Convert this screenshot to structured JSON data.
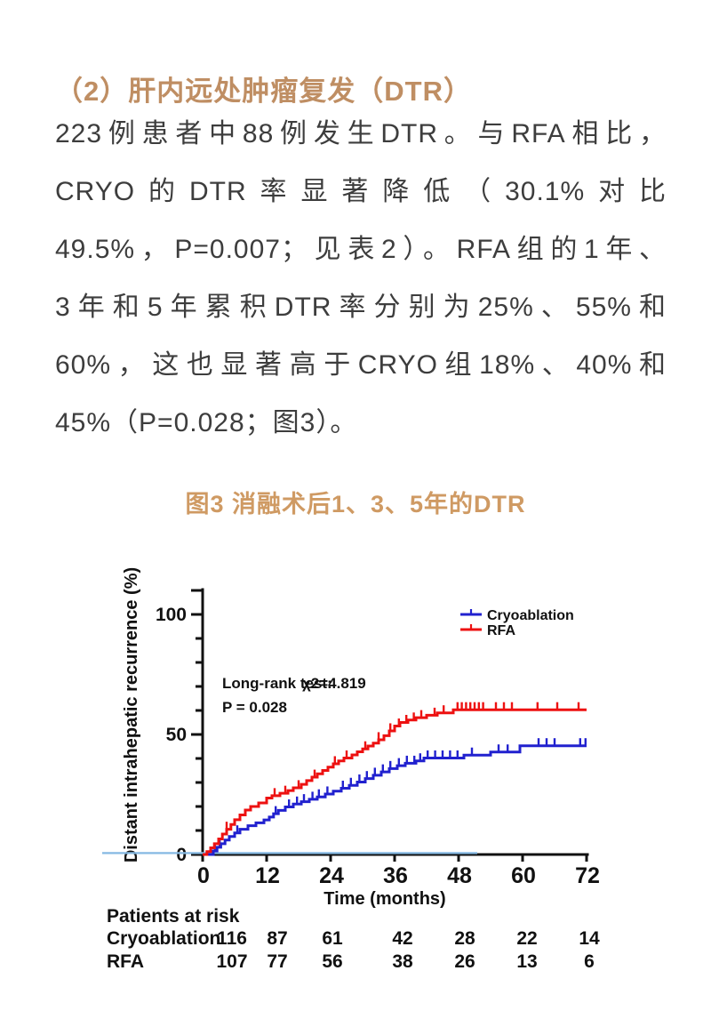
{
  "page": {
    "background": "#ffffff"
  },
  "heading": {
    "text": "（2）肝内远处肿瘤复发（DTR）",
    "color": "#bf8e63"
  },
  "paragraph": {
    "color": "#3d3d3d",
    "lines": [
      "223例患者中88例发生DTR。与RFA相比，",
      "CRYO的DTR率显著降低（30.1%对比",
      "49.5%，P=0.007；见表2）。RFA组的1年、",
      "3年和5年累积DTR率分别为25%、55%和",
      "60%，这也显著高于CRYO组18%、40%和",
      "45%（P=0.028；图3）。"
    ]
  },
  "figure_caption": {
    "text": "图3 消融术后1、3、5年的DTR",
    "color": "#cf9a63"
  },
  "chart_data": {
    "type": "line",
    "subtype": "kaplan-meier-step",
    "title": "",
    "ylabel": "Distant intrahepatic recurrence (%)",
    "xlabel": "Time (months)",
    "xlim": [
      0,
      72
    ],
    "ylim": [
      0,
      110
    ],
    "xticks": [
      0,
      12,
      24,
      36,
      48,
      60,
      72
    ],
    "yticks_major": [
      0,
      50,
      100
    ],
    "ytick_minor_step": 10,
    "grid": false,
    "axis_color": "#111111",
    "baseline_highlight_color": "#85b9e3",
    "legend_position": "top-right",
    "legend_order": [
      "Cryoablation",
      "RFA"
    ],
    "annotation": {
      "test_label": "Long-rank test:",
      "chi_value": "χ2=4.819",
      "p_value": "P = 0.028"
    },
    "series": [
      {
        "name": "Cryoablation",
        "color": "#2121cf",
        "steps": [
          [
            0,
            0
          ],
          [
            2,
            1.5
          ],
          [
            2.7,
            3
          ],
          [
            3.4,
            4.5
          ],
          [
            4.2,
            6
          ],
          [
            5,
            7.5
          ],
          [
            6,
            9
          ],
          [
            7,
            10.5
          ],
          [
            8.5,
            12
          ],
          [
            10,
            13.2
          ],
          [
            11.5,
            14.4
          ],
          [
            12.5,
            15.6
          ],
          [
            13.3,
            17
          ],
          [
            14.2,
            18.4
          ],
          [
            15.5,
            19.8
          ],
          [
            17,
            21
          ],
          [
            18.5,
            22
          ],
          [
            20,
            23
          ],
          [
            21.5,
            24
          ],
          [
            23,
            25.2
          ],
          [
            24.5,
            26.4
          ],
          [
            26,
            27.6
          ],
          [
            27.5,
            28.8
          ],
          [
            29,
            30.2
          ],
          [
            30.5,
            31.6
          ],
          [
            32,
            33
          ],
          [
            33.5,
            34.4
          ],
          [
            35,
            35.8
          ],
          [
            36.5,
            37
          ],
          [
            38,
            38
          ],
          [
            40,
            39
          ],
          [
            41.5,
            40.2
          ],
          [
            49,
            41.4
          ],
          [
            54,
            42.7
          ],
          [
            59.5,
            45.3
          ],
          [
            72,
            45.3
          ]
        ],
        "censor_marks": [
          2.3,
          3.2,
          6.5,
          13.7,
          16.2,
          17.7,
          19,
          20.6,
          21.8,
          23.4,
          26.3,
          27.8,
          29.4,
          30.8,
          32.3,
          33.8,
          35.2,
          36.8,
          38.3,
          39.7,
          40.8,
          42.2,
          43.6,
          45,
          46.4,
          47.8,
          50.5,
          55.5,
          57.2,
          63,
          64.5,
          66,
          70.8,
          71.8
        ]
      },
      {
        "name": "RFA",
        "color": "#ed1111",
        "steps": [
          [
            0,
            0
          ],
          [
            0.8,
            1.2
          ],
          [
            1.5,
            2.8
          ],
          [
            2.2,
            4.5
          ],
          [
            3,
            6.5
          ],
          [
            3.7,
            8.5
          ],
          [
            4.5,
            10.5
          ],
          [
            5.3,
            12.5
          ],
          [
            6,
            14.5
          ],
          [
            7,
            16.5
          ],
          [
            8,
            18.5
          ],
          [
            9,
            20
          ],
          [
            10.5,
            21.5
          ],
          [
            12,
            23.5
          ],
          [
            13,
            24.5
          ],
          [
            14.5,
            25.5
          ],
          [
            16,
            26.6
          ],
          [
            17,
            27.8
          ],
          [
            18.5,
            29.2
          ],
          [
            19.5,
            30.8
          ],
          [
            20.5,
            32.2
          ],
          [
            21.5,
            33.6
          ],
          [
            22.5,
            35
          ],
          [
            23.5,
            36.4
          ],
          [
            24.5,
            37.8
          ],
          [
            25.5,
            39
          ],
          [
            26.5,
            40.2
          ],
          [
            28,
            41.5
          ],
          [
            29,
            42.8
          ],
          [
            30,
            44
          ],
          [
            31,
            45.2
          ],
          [
            32,
            46.4
          ],
          [
            33,
            47.8
          ],
          [
            34,
            49.5
          ],
          [
            35,
            51.5
          ],
          [
            36,
            53.5
          ],
          [
            37,
            55
          ],
          [
            38.5,
            56
          ],
          [
            40,
            57
          ],
          [
            42,
            58
          ],
          [
            44,
            59
          ],
          [
            47,
            60.3
          ],
          [
            72,
            60.3
          ]
        ],
        "censor_marks": [
          4.5,
          13.5,
          15.5,
          18,
          21,
          24.8,
          27,
          30.5,
          33,
          35.2,
          36.8,
          38.2,
          39.6,
          41,
          43.5,
          45.2,
          47.8,
          48.6,
          49.4,
          50.2,
          51,
          51.8,
          52.6,
          55,
          56.5,
          58,
          62.8,
          66.5,
          70.5
        ]
      }
    ],
    "at_risk": {
      "title": "Patients at risk",
      "time_points": [
        0,
        12,
        24,
        36,
        48,
        60,
        72
      ],
      "rows": [
        {
          "label": "Cryoablation",
          "values": [
            116,
            87,
            61,
            42,
            28,
            22,
            14
          ]
        },
        {
          "label": "RFA",
          "values": [
            107,
            77,
            56,
            38,
            26,
            13,
            6
          ]
        }
      ]
    }
  }
}
